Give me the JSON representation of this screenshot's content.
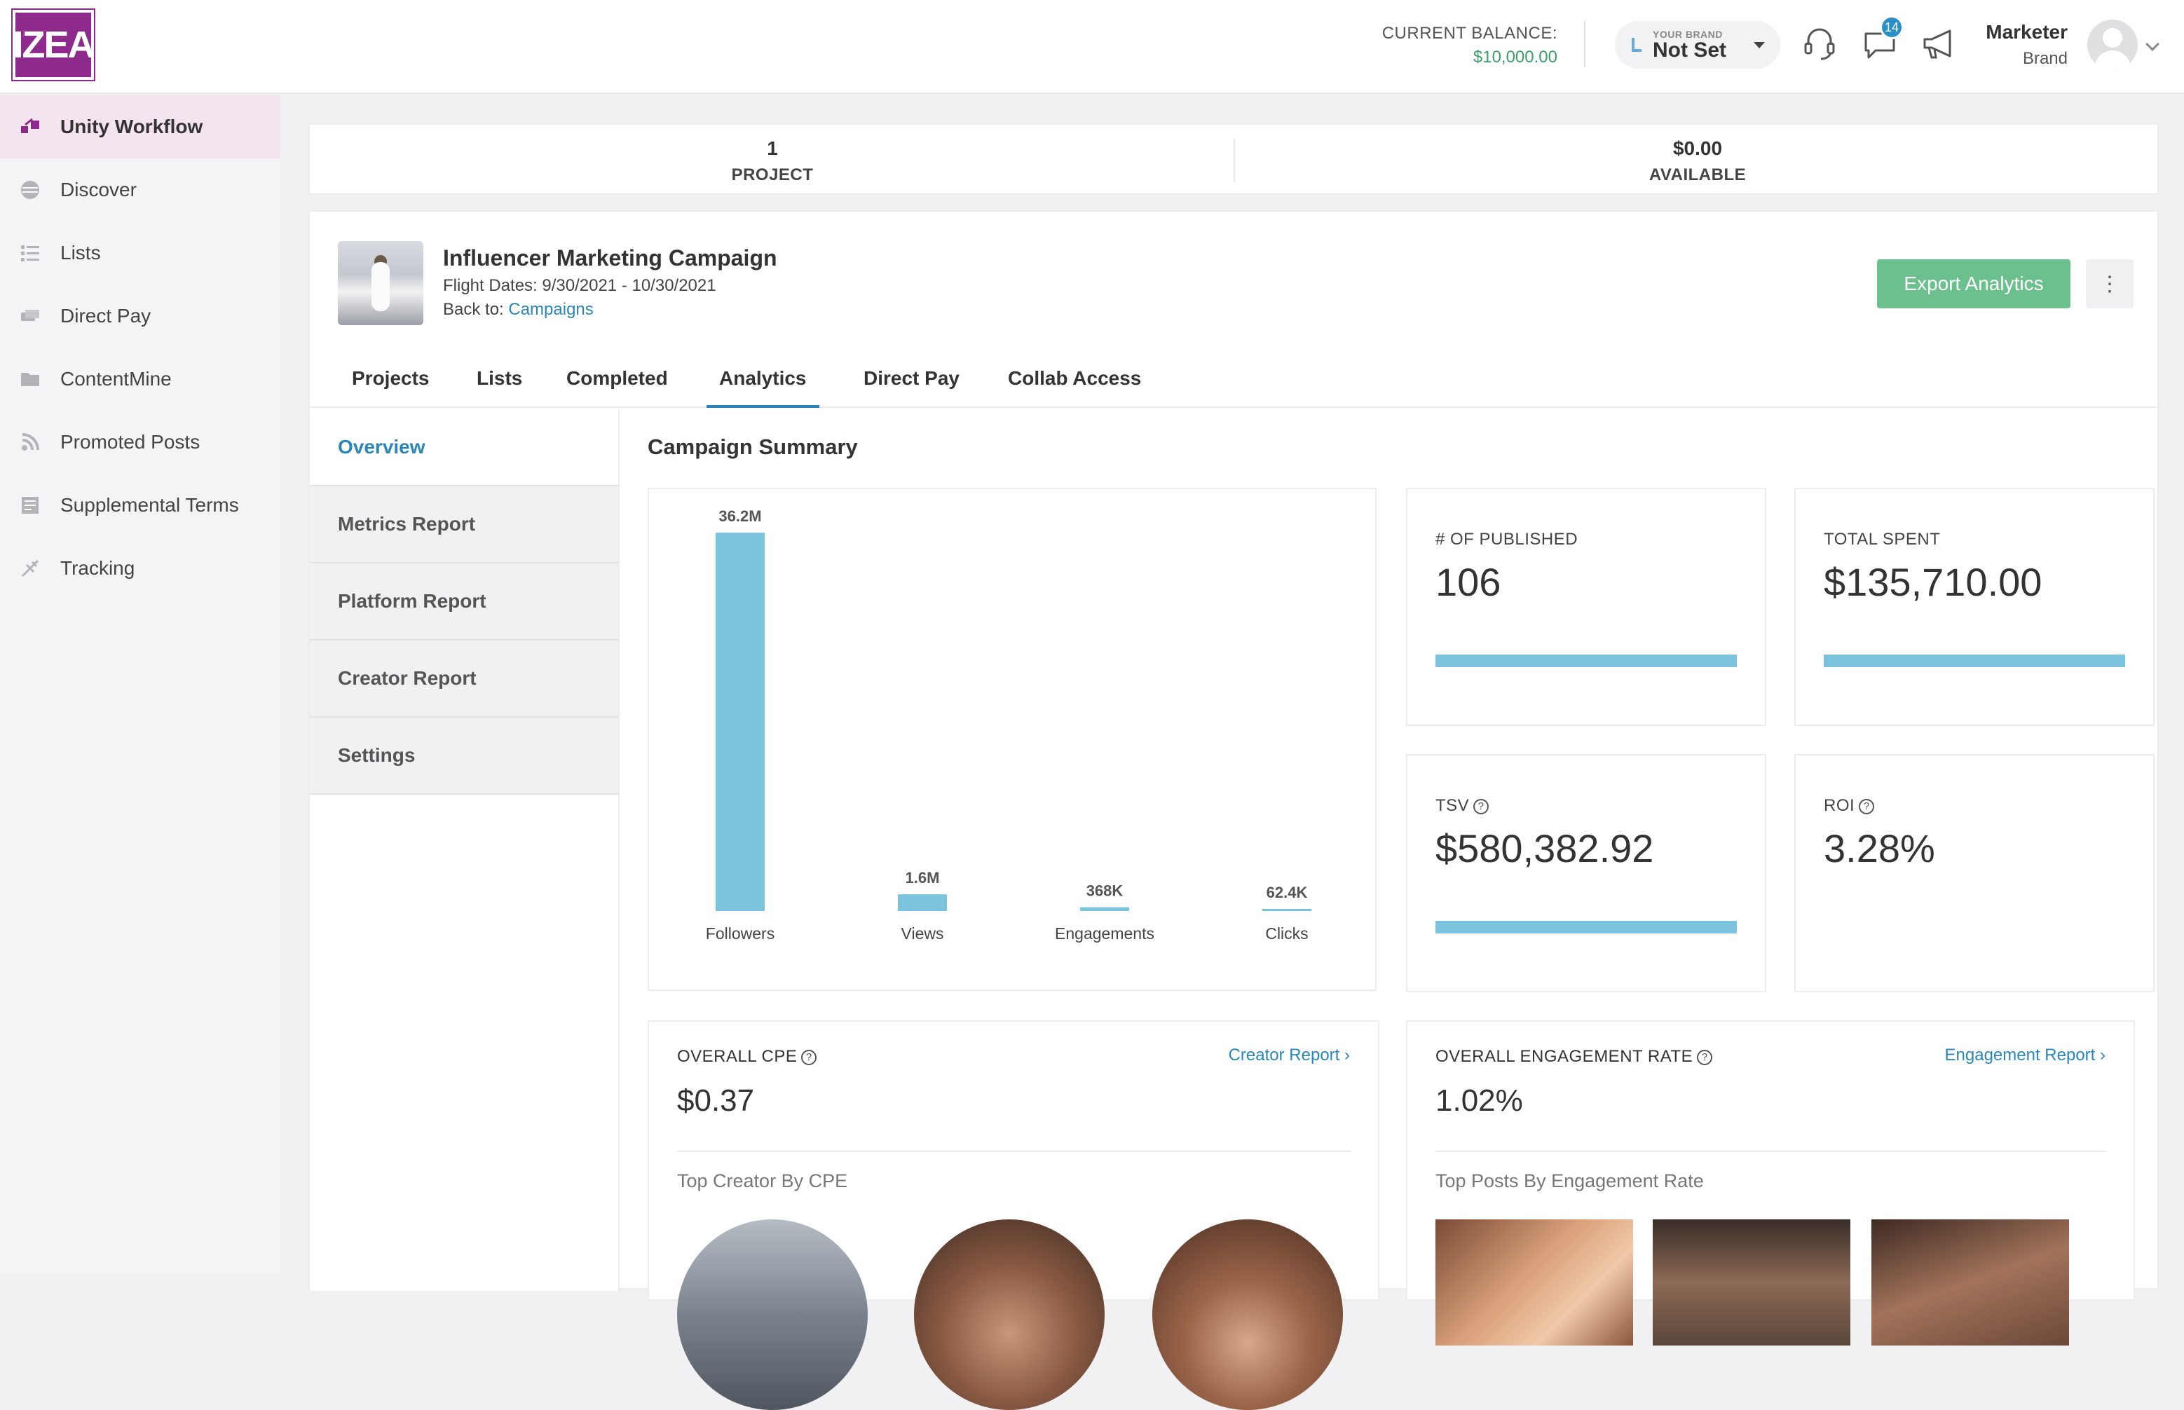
{
  "header": {
    "logo_text": "IZEA",
    "balance_label": "CURRENT BALANCE:",
    "balance_value": "$10,000.00",
    "brand_small": "YOUR BRAND",
    "brand_value": "Not Set",
    "notifications_count": "14",
    "user_name": "Marketer",
    "user_role": "Brand"
  },
  "sidebar": {
    "items": [
      {
        "label": "Unity Workflow",
        "icon": "workflow-icon"
      },
      {
        "label": "Discover",
        "icon": "discover-icon"
      },
      {
        "label": "Lists",
        "icon": "list-icon"
      },
      {
        "label": "Direct Pay",
        "icon": "money-icon"
      },
      {
        "label": "ContentMine",
        "icon": "folder-icon"
      },
      {
        "label": "Promoted Posts",
        "icon": "rss-icon"
      },
      {
        "label": "Supplemental Terms",
        "icon": "document-icon"
      },
      {
        "label": "Tracking",
        "icon": "tracking-icon"
      }
    ]
  },
  "stats": {
    "projects_value": "1",
    "projects_label": "PROJECT",
    "available_value": "$0.00",
    "available_label": "AVAILABLE"
  },
  "campaign": {
    "title": "Influencer Marketing Campaign",
    "flight_dates": "Flight Dates: 9/30/2021 - 10/30/2021",
    "back_label": "Back to: ",
    "back_link": "Campaigns",
    "export_label": "Export Analytics",
    "menu_glyph": "⋮"
  },
  "tabs": [
    "Projects",
    "Lists",
    "Completed",
    "Analytics",
    "Direct Pay",
    "Collab Access"
  ],
  "subnav": [
    "Overview",
    "Metrics Report",
    "Platform Report",
    "Creator Report",
    "Settings"
  ],
  "summary": {
    "title": "Campaign Summary",
    "published_label": "# OF PUBLISHED",
    "published_value": "106",
    "spent_label": "TOTAL SPENT",
    "spent_value": "$135,710.00",
    "tsv_label": "TSV",
    "tsv_value": "$580,382.92",
    "roi_label": "ROI",
    "roi_value": "3.28%",
    "help_glyph": "?"
  },
  "cpe": {
    "label": "OVERALL CPE",
    "value": "$0.37",
    "link": "Creator Report",
    "sub": "Top Creator By CPE"
  },
  "engagement": {
    "label": "OVERALL ENGAGEMENT RATE",
    "value": "1.02%",
    "link": "Engagement Report",
    "sub": "Top Posts By Engagement Rate"
  },
  "colors": {
    "brand": "#8e2a8b",
    "accent": "#2b86b9",
    "export": "#6cc08e",
    "bar": "#7cc4dd"
  },
  "chart_data": {
    "type": "bar",
    "categories": [
      "Followers",
      "Views",
      "Engagements",
      "Clicks"
    ],
    "values": [
      36200000,
      1600000,
      368000,
      62400
    ],
    "data_labels": [
      "36.2M",
      "1.6M",
      "368K",
      "62.4K"
    ],
    "title": "",
    "xlabel": "",
    "ylabel": "",
    "ylim": [
      0,
      36200000
    ],
    "grid": false
  }
}
